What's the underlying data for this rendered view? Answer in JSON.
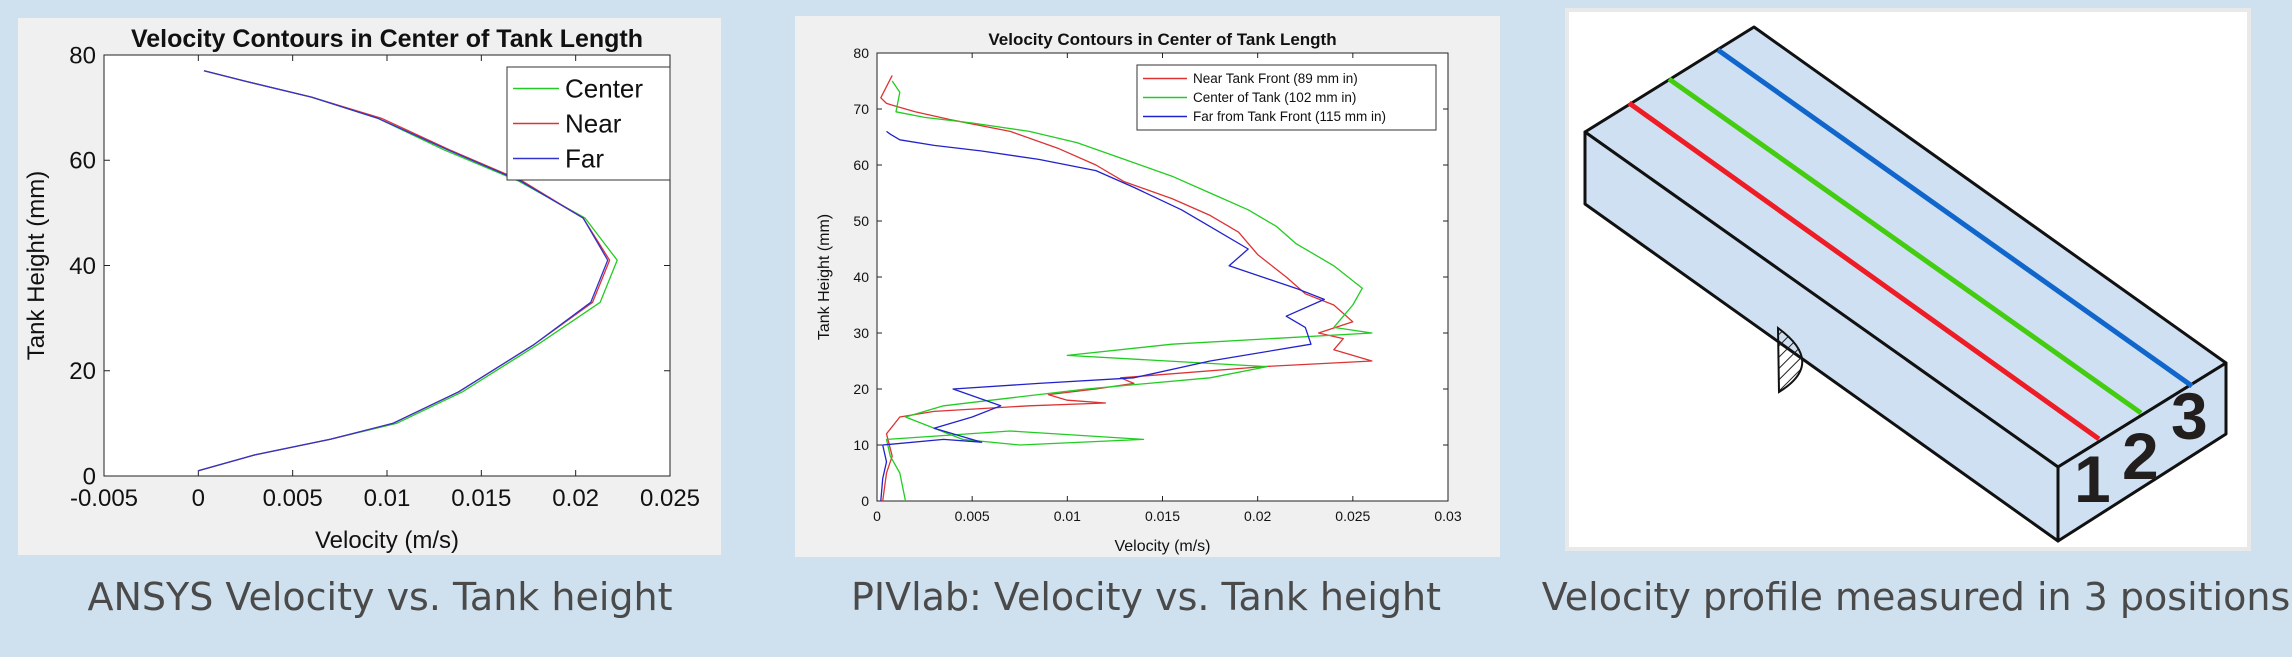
{
  "chart_data": [
    {
      "type": "line",
      "title": "Velocity Contours in Center of Tank Length",
      "xlabel": "Velocity (m/s)",
      "ylabel": "Tank Height (mm)",
      "xlim": [
        -0.005,
        0.025
      ],
      "ylim": [
        0,
        80
      ],
      "xticks": [
        -0.005,
        0,
        0.005,
        0.01,
        0.015,
        0.02,
        0.025
      ],
      "xtick_labels": [
        "-0.005",
        "0",
        "0.005",
        "0.01",
        "0.015",
        "0.02",
        "0.025"
      ],
      "yticks": [
        0,
        20,
        40,
        60,
        80
      ],
      "ytick_labels": [
        "0",
        "20",
        "40",
        "60",
        "80"
      ],
      "grid": false,
      "legend": "top-right",
      "series": [
        {
          "name": "Center",
          "color": "#22cc22",
          "x": [
            0,
            0.003,
            0.007,
            0.0105,
            0.014,
            0.018,
            0.0213,
            0.0222,
            0.0205,
            0.017,
            0.013,
            0.0095,
            0.006,
            0.0025,
            0.0003
          ],
          "y": [
            1,
            4,
            7,
            10,
            16,
            25,
            33,
            41,
            49,
            56,
            62,
            68,
            72,
            75,
            77
          ]
        },
        {
          "name": "Near",
          "color": "#dd3333",
          "x": [
            0,
            0.003,
            0.007,
            0.0103,
            0.0138,
            0.0178,
            0.0209,
            0.0218,
            0.0204,
            0.0172,
            0.0133,
            0.0097,
            0.006,
            0.0025,
            0.0003
          ],
          "y": [
            1,
            4,
            7,
            10,
            16,
            25,
            33,
            41,
            49,
            56,
            62,
            68,
            72,
            75,
            77
          ]
        },
        {
          "name": "Far",
          "color": "#3333cc",
          "x": [
            0,
            0.003,
            0.007,
            0.0103,
            0.0138,
            0.0178,
            0.0208,
            0.0217,
            0.0204,
            0.0171,
            0.0132,
            0.0095,
            0.006,
            0.0025,
            0.0003
          ],
          "y": [
            1,
            4,
            7,
            10,
            16,
            25,
            33,
            41,
            49,
            56,
            62,
            68,
            72,
            75,
            77
          ]
        }
      ]
    },
    {
      "type": "line",
      "title": "Velocity Contours in Center of Tank Length",
      "xlabel": "Velocity (m/s)",
      "ylabel": "Tank Height (mm)",
      "xlim": [
        0,
        0.03
      ],
      "ylim": [
        0,
        80
      ],
      "xticks": [
        0,
        0.005,
        0.01,
        0.015,
        0.02,
        0.025,
        0.03
      ],
      "xtick_labels": [
        "0",
        "0.005",
        "0.01",
        "0.015",
        "0.02",
        "0.025",
        "0.03"
      ],
      "yticks": [
        0,
        10,
        20,
        30,
        40,
        50,
        60,
        70,
        80
      ],
      "ytick_labels": [
        "0",
        "10",
        "20",
        "30",
        "40",
        "50",
        "60",
        "70",
        "80"
      ],
      "grid": false,
      "legend": "top-right",
      "series": [
        {
          "name": "Near Tank Front (89 mm in)",
          "color": "#dd3333",
          "x": [
            0.0003,
            0.0005,
            0.0008,
            0.0005,
            0.0012,
            0.003,
            0.008,
            0.012,
            0.01,
            0.009,
            0.0115,
            0.0135,
            0.0128,
            0.0203,
            0.026,
            0.024,
            0.0245,
            0.0232,
            0.025,
            0.024,
            0.0225,
            0.0215,
            0.02,
            0.019,
            0.0175,
            0.0155,
            0.013,
            0.0115,
            0.0095,
            0.007,
            0.004,
            0.002,
            0.001,
            0.0005,
            0.0002,
            0.0005,
            0.0008
          ],
          "y": [
            0,
            5,
            8,
            12,
            15,
            16,
            17,
            17.5,
            18,
            19,
            20,
            21,
            22,
            24,
            25,
            27,
            29,
            30,
            32,
            35,
            37,
            40,
            44,
            48,
            51,
            54,
            57,
            60,
            63,
            66,
            68,
            69.5,
            70.5,
            71,
            72,
            74,
            76
          ]
        },
        {
          "name": "Center of Tank (102 mm in)",
          "color": "#22cc22",
          "x": [
            0.0015,
            0.0012,
            0.0007,
            0.0005,
            0.007,
            0.014,
            0.0075,
            0.0045,
            0.0015,
            0.0035,
            0.006,
            0.011,
            0.0175,
            0.0205,
            0.01,
            0.0155,
            0.026,
            0.024,
            0.0245,
            0.025,
            0.0255,
            0.024,
            0.022,
            0.021,
            0.0195,
            0.0175,
            0.0155,
            0.013,
            0.0105,
            0.008,
            0.005,
            0.0025,
            0.001,
            0.0012,
            0.0008
          ],
          "y": [
            0,
            5,
            8,
            11,
            12.5,
            11,
            10,
            11,
            15,
            17,
            18,
            20,
            22,
            24,
            26,
            28,
            30,
            31,
            33,
            35,
            38,
            42,
            46,
            49,
            52,
            55,
            58,
            61,
            64,
            66,
            67.5,
            68.5,
            69.5,
            73,
            75
          ]
        },
        {
          "name": "Far from Tank Front (115 mm in)",
          "color": "#2222cc",
          "x": [
            0.0002,
            0.0003,
            0.0005,
            0.0003,
            0.0035,
            0.0055,
            0.003,
            0.005,
            0.0065,
            0.004,
            0.0085,
            0.0135,
            0.0175,
            0.0228,
            0.0225,
            0.0215,
            0.0235,
            0.022,
            0.0185,
            0.0195,
            0.0175,
            0.016,
            0.0135,
            0.0115,
            0.0085,
            0.0055,
            0.003,
            0.0012,
            0.0007,
            0.0005
          ],
          "y": [
            0,
            4,
            7,
            10,
            11,
            10.5,
            13,
            15,
            17,
            20,
            21,
            22,
            25,
            28,
            31,
            33,
            36,
            38,
            42,
            45,
            49,
            52,
            56,
            59,
            61,
            62.5,
            63.5,
            64.5,
            65.5,
            66
          ]
        }
      ]
    }
  ],
  "diagram": {
    "position_labels": [
      "1",
      "2",
      "3"
    ],
    "line_colors": [
      "#ee1c24",
      "#44cc11",
      "#1166cc"
    ],
    "box_fill": "#cfe0f2"
  },
  "captions": {
    "chart1": "ANSYS Velocity vs. Tank height",
    "chart2": "PIVlab: Velocity vs. Tank height",
    "diagram": "Velocity profile measured in 3 positions"
  }
}
